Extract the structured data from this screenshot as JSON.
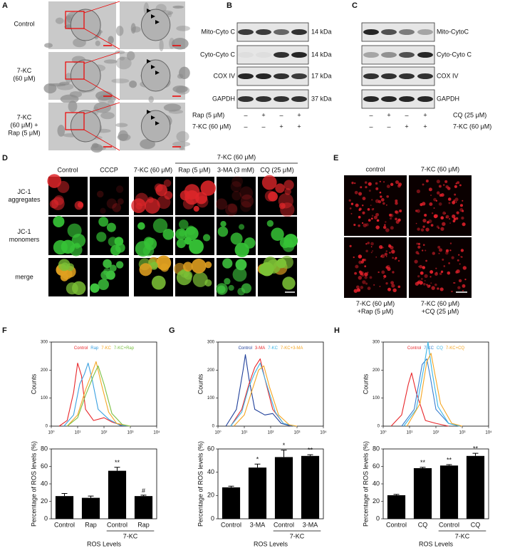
{
  "panels": {
    "a": {
      "label": "A",
      "rows": [
        [
          "Control"
        ],
        [
          "7-KC",
          "(60 μM)"
        ],
        [
          "7-KC",
          "(60 μM) +",
          "Rap (5 μM)"
        ]
      ]
    },
    "b": {
      "label": "B",
      "rows": [
        {
          "name": "Mito-Cyto C",
          "size": "14 kDa"
        },
        {
          "name": "Cyto-Cyto C",
          "size": "14 kDa"
        },
        {
          "name": "COX IV",
          "size": "17 kDa"
        },
        {
          "name": "GAPDH",
          "size": "37 kDa"
        }
      ],
      "treatments": [
        {
          "name": "Rap (5 μM)",
          "signs": [
            "–",
            "+",
            "–",
            "+"
          ]
        },
        {
          "name": "7-KC (60 μM)",
          "signs": [
            "–",
            "–",
            "+",
            "+"
          ]
        }
      ]
    },
    "c": {
      "label": "C",
      "rows": [
        "Mito-CytoC",
        "Cyto-Cyto C",
        "COX IV",
        "GAPDH"
      ],
      "treatments": [
        {
          "name": "CQ (25 μM)",
          "signs": [
            "–",
            "+",
            "–",
            "+"
          ]
        },
        {
          "name": "7-KC (60 μM)",
          "signs": [
            "–",
            "–",
            "+",
            "+"
          ]
        }
      ]
    },
    "d": {
      "label": "D",
      "group": "7-KC (60 μM)",
      "columns": [
        "Control",
        "CCCP",
        "7-KC (60 μM)",
        "Rap (5 μM)",
        "3-MA (3 mM)",
        "CQ (25 μM)"
      ],
      "rows": [
        [
          "JC-1",
          "aggregates"
        ],
        [
          "JC-1",
          "monomers"
        ],
        [
          "merge"
        ]
      ]
    },
    "e": {
      "label": "E",
      "columns": [
        "control",
        "7-KC (60 μM)"
      ],
      "captions": [
        [
          "7-KC (60 μM)",
          "+Rap (5 μM)"
        ],
        [
          "7-KC (60 μM)",
          "+CQ (25 μM)"
        ]
      ]
    },
    "lower_labels": [
      "F",
      "G",
      "H"
    ]
  },
  "chart_data": [
    {
      "type": "line",
      "xscale": "log",
      "ylabel": "Counts",
      "xlim": [
        1,
        10000
      ],
      "xticks": [
        {
          "value": 1,
          "label": "10⁰"
        },
        {
          "value": 10,
          "label": "10¹"
        },
        {
          "value": 100,
          "label": "10²"
        },
        {
          "value": 1000,
          "label": "10³"
        },
        {
          "value": 10000,
          "label": "10⁴"
        }
      ],
      "ylim": [
        0,
        300
      ],
      "yticks": [
        0,
        100,
        200,
        300
      ],
      "series": [
        {
          "name": "Control",
          "color": "#e8262a",
          "x": [
            2,
            4,
            7,
            10,
            14,
            20,
            40,
            100,
            200,
            500,
            1000
          ],
          "values": [
            0,
            20,
            120,
            225,
            180,
            60,
            20,
            30,
            15,
            2,
            0
          ]
        },
        {
          "name": "Rap",
          "color": "#3aa0e0",
          "x": [
            3,
            7,
            12,
            18,
            25,
            35,
            60,
            150,
            400,
            1000
          ],
          "values": [
            0,
            40,
            150,
            185,
            225,
            170,
            60,
            25,
            3,
            0
          ]
        },
        {
          "name": "7-KC",
          "color": "#f5a623",
          "x": [
            4,
            10,
            20,
            35,
            50,
            80,
            150,
            300,
            1000
          ],
          "values": [
            0,
            40,
            130,
            190,
            230,
            150,
            50,
            10,
            0
          ]
        },
        {
          "name": "7-KC+Rap",
          "color": "#7ac143",
          "x": [
            4,
            10,
            20,
            40,
            60,
            100,
            200,
            500,
            1000
          ],
          "values": [
            0,
            30,
            110,
            180,
            215,
            150,
            45,
            5,
            0
          ]
        }
      ]
    },
    {
      "type": "bar",
      "categories": [
        "Control",
        "Rap",
        "Control",
        "Rap"
      ],
      "group": "7-KC",
      "values": [
        26,
        24,
        55,
        26
      ],
      "errors": [
        3,
        2,
        4,
        1
      ],
      "annotations": [
        null,
        null,
        "**",
        "#"
      ],
      "color": "#000000",
      "ylabel": "Percentage of ROS levels (%)",
      "xlabel": "ROS Levels",
      "ylim": [
        0,
        80
      ],
      "yticks": [
        0,
        20,
        40,
        60,
        80
      ]
    },
    {
      "type": "line",
      "xscale": "log",
      "ylabel": "Counts",
      "xlim": [
        1,
        10000
      ],
      "xticks": [
        {
          "value": 1,
          "label": "10⁰"
        },
        {
          "value": 10,
          "label": "10¹"
        },
        {
          "value": 100,
          "label": "10²"
        },
        {
          "value": 1000,
          "label": "10³"
        },
        {
          "value": 10000,
          "label": "10⁴"
        }
      ],
      "ylim": [
        0,
        300
      ],
      "yticks": [
        0,
        100,
        200,
        300
      ],
      "series": [
        {
          "name": "Control",
          "color": "#1f3f9a",
          "x": [
            2,
            5,
            9,
            11,
            15,
            25,
            60,
            120,
            250,
            600
          ],
          "values": [
            0,
            60,
            200,
            255,
            170,
            60,
            40,
            45,
            10,
            0
          ]
        },
        {
          "name": "3-MA",
          "color": "#e8262a",
          "x": [
            3,
            8,
            15,
            25,
            40,
            60,
            120,
            300,
            800
          ],
          "values": [
            0,
            60,
            150,
            210,
            240,
            170,
            60,
            10,
            0
          ]
        },
        {
          "name": "7-KC",
          "color": "#3ab5e6",
          "x": [
            3,
            8,
            15,
            25,
            40,
            70,
            150,
            300,
            800
          ],
          "values": [
            0,
            50,
            140,
            190,
            225,
            150,
            50,
            10,
            0
          ]
        },
        {
          "name": "7-KC+3-MA",
          "color": "#f5a623",
          "x": [
            4,
            10,
            20,
            35,
            55,
            90,
            200,
            500,
            1000
          ],
          "values": [
            0,
            40,
            130,
            200,
            215,
            140,
            40,
            5,
            0
          ]
        }
      ]
    },
    {
      "type": "bar",
      "categories": [
        "Control",
        "3-MA",
        "Control",
        "3-MA"
      ],
      "group": "7-KC",
      "values": [
        27,
        44,
        53,
        54
      ],
      "errors": [
        1,
        3,
        6,
        1
      ],
      "annotations": [
        null,
        "*",
        "*",
        "**"
      ],
      "color": "#000000",
      "ylabel": "Percentage of ROS levels (%)",
      "xlabel": "ROS Levels",
      "ylim": [
        0,
        60
      ],
      "yticks": [
        0,
        20,
        40,
        60
      ]
    },
    {
      "type": "line",
      "xscale": "log",
      "ylabel": "Counts",
      "xlim": [
        1,
        10000
      ],
      "xticks": [
        {
          "value": 1,
          "label": "10⁰"
        },
        {
          "value": 10,
          "label": "10¹"
        },
        {
          "value": 100,
          "label": "10²"
        },
        {
          "value": 1000,
          "label": "10³"
        },
        {
          "value": 10000,
          "label": "10⁴"
        }
      ],
      "ylim": [
        0,
        300
      ],
      "yticks": [
        0,
        100,
        200,
        300
      ],
      "series": [
        {
          "name": "Control",
          "color": "#e8262a",
          "x": [
            2,
            5,
            9,
            12,
            18,
            40,
            100,
            300
          ],
          "values": [
            0,
            40,
            150,
            190,
            120,
            20,
            10,
            0
          ]
        },
        {
          "name": "7-KC",
          "color": "#3a7fd0",
          "x": [
            5,
            15,
            30,
            45,
            60,
            100,
            300,
            800
          ],
          "values": [
            0,
            60,
            220,
            240,
            180,
            60,
            10,
            0
          ]
        },
        {
          "name": "CQ",
          "color": "#3ab5e6",
          "x": [
            6,
            18,
            35,
            50,
            70,
            120,
            300,
            800
          ],
          "values": [
            0,
            60,
            210,
            300,
            200,
            70,
            10,
            0
          ]
        },
        {
          "name": "7-KC+CQ",
          "color": "#f5a623",
          "x": [
            8,
            25,
            45,
            65,
            90,
            150,
            400,
            1000
          ],
          "values": [
            0,
            80,
            230,
            260,
            190,
            80,
            10,
            0
          ]
        }
      ]
    },
    {
      "type": "bar",
      "categories": [
        "Control",
        "CQ",
        "Control",
        "CQ"
      ],
      "group": "7-KC",
      "values": [
        27,
        58,
        61,
        72
      ],
      "errors": [
        1,
        1,
        1,
        3
      ],
      "annotations": [
        null,
        "**",
        "**",
        "**"
      ],
      "color": "#000000",
      "ylabel": "Percentage of ROS levels (%)",
      "xlabel": "ROS Levels",
      "ylim": [
        0,
        80
      ],
      "yticks": [
        0,
        20,
        40,
        60,
        80
      ]
    }
  ]
}
